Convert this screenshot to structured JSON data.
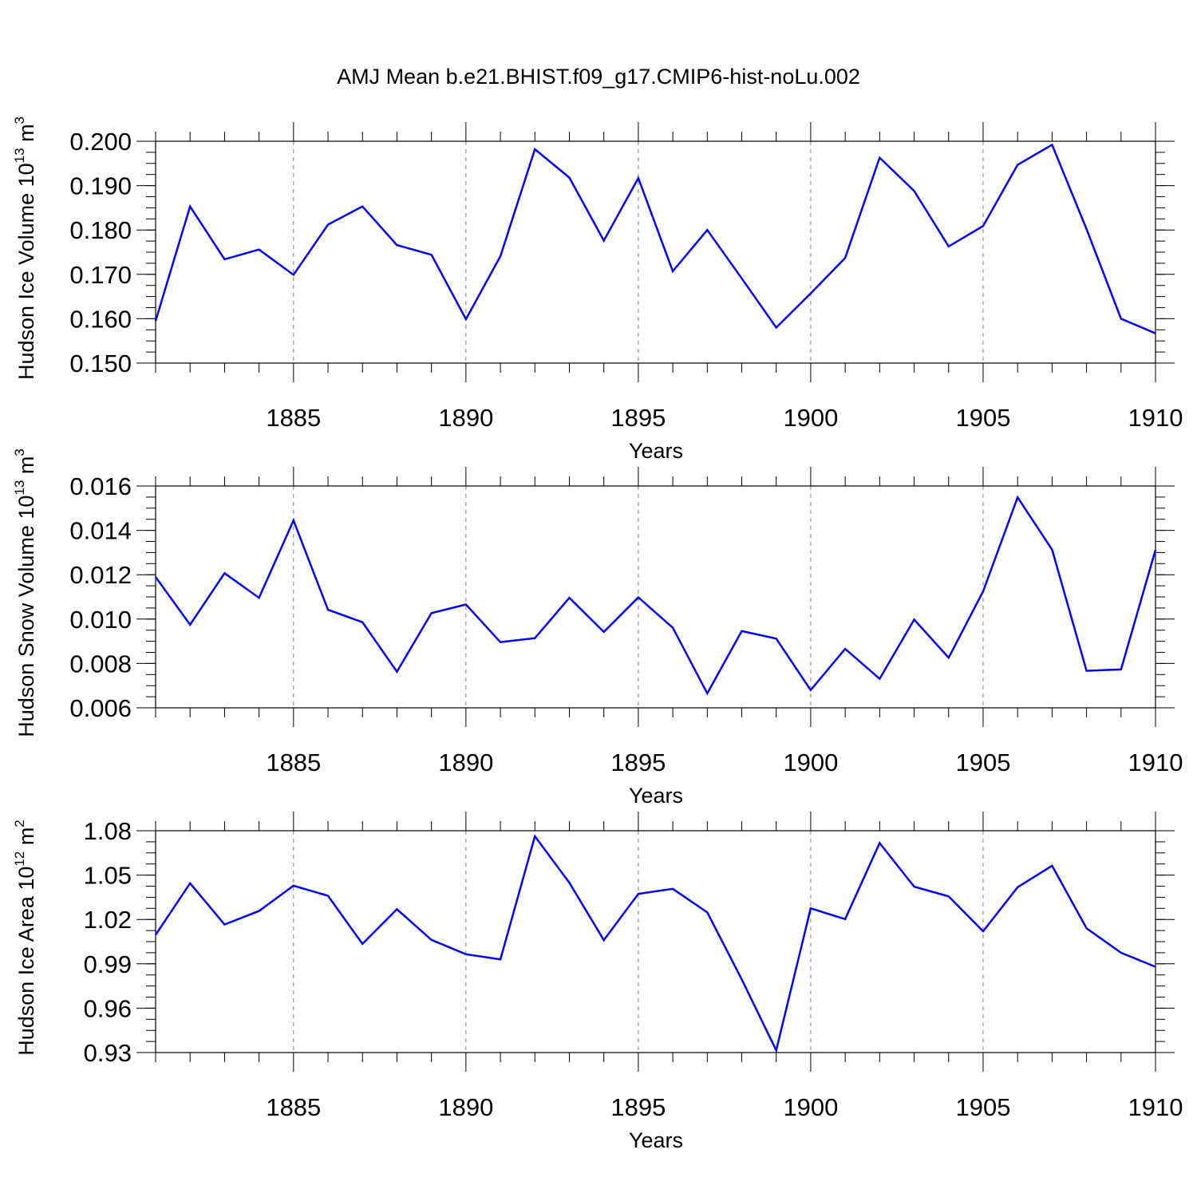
{
  "title": "AMJ Mean b.e21.BHIST.f09_g17.CMIP6-hist-noLu.002",
  "colors": {
    "line": "#0000ff",
    "axis": "#000000",
    "grid": "#808080"
  },
  "chart_data": [
    {
      "type": "line",
      "ylabel": "Hudson Ice Volume 10",
      "ylabel_exp": "13",
      "ylabel_unit": "m",
      "ylabel_unit_exp": "3",
      "xlabel": "Years",
      "xlim": [
        1881,
        1910
      ],
      "ylim": [
        0.15,
        0.2
      ],
      "xticks": [
        1885,
        1890,
        1895,
        1900,
        1905,
        1910
      ],
      "xtick_labels": [
        "1885",
        "1890",
        "1895",
        "1900",
        "1905",
        "1910"
      ],
      "yticks": [
        0.15,
        0.16,
        0.17,
        0.18,
        0.19,
        0.2
      ],
      "ytick_labels": [
        "0.150",
        "0.160",
        "0.170",
        "0.180",
        "0.190",
        "0.200"
      ],
      "yminor_step": 0.0025,
      "grid": "vertical-dashed",
      "x": [
        1881,
        1882,
        1883,
        1884,
        1885,
        1886,
        1887,
        1888,
        1889,
        1890,
        1891,
        1892,
        1893,
        1894,
        1895,
        1896,
        1897,
        1898,
        1899,
        1900,
        1901,
        1902,
        1903,
        1904,
        1905,
        1906,
        1907,
        1908,
        1909,
        1910
      ],
      "values": [
        0.1595,
        0.1853,
        0.1734,
        0.1756,
        0.1699,
        0.1812,
        0.1853,
        0.1766,
        0.1744,
        0.1599,
        0.1741,
        0.1982,
        0.1918,
        0.1776,
        0.1917,
        0.1707,
        0.18,
        0.1691,
        0.158,
        0.1657,
        0.1737,
        0.1963,
        0.1888,
        0.1763,
        0.1809,
        0.1947,
        0.1992,
        0.1802,
        0.16,
        0.1567
      ]
    },
    {
      "type": "line",
      "ylabel": "Hudson Snow Volume 10",
      "ylabel_exp": "13",
      "ylabel_unit": "m",
      "ylabel_unit_exp": "3",
      "xlabel": "Years",
      "xlim": [
        1881,
        1910
      ],
      "ylim": [
        0.006,
        0.016
      ],
      "xticks": [
        1885,
        1890,
        1895,
        1900,
        1905,
        1910
      ],
      "xtick_labels": [
        "1885",
        "1890",
        "1895",
        "1900",
        "1905",
        "1910"
      ],
      "yticks": [
        0.006,
        0.008,
        0.01,
        0.012,
        0.014,
        0.016
      ],
      "ytick_labels": [
        "0.006",
        "0.008",
        "0.010",
        "0.012",
        "0.014",
        "0.016"
      ],
      "yminor_step": 0.0005,
      "grid": "vertical-dashed",
      "x": [
        1881,
        1882,
        1883,
        1884,
        1885,
        1886,
        1887,
        1888,
        1889,
        1890,
        1891,
        1892,
        1893,
        1894,
        1895,
        1896,
        1897,
        1898,
        1899,
        1900,
        1901,
        1902,
        1903,
        1904,
        1905,
        1906,
        1907,
        1908,
        1909,
        1910
      ],
      "values": [
        0.0119,
        0.00975,
        0.01207,
        0.01096,
        0.01445,
        0.01042,
        0.00986,
        0.00763,
        0.01027,
        0.01066,
        0.00896,
        0.00914,
        0.01096,
        0.00942,
        0.01098,
        0.00961,
        0.00665,
        0.00946,
        0.00912,
        0.0068,
        0.00866,
        0.00731,
        0.00998,
        0.00826,
        0.01125,
        0.01549,
        0.01313,
        0.00767,
        0.00773,
        0.01312
      ]
    },
    {
      "type": "line",
      "ylabel": "Hudson Ice Area 10",
      "ylabel_exp": "12",
      "ylabel_unit": "m",
      "ylabel_unit_exp": "2",
      "xlabel": "Years",
      "xlim": [
        1881,
        1910
      ],
      "ylim": [
        0.93,
        1.08
      ],
      "xticks": [
        1885,
        1890,
        1895,
        1900,
        1905,
        1910
      ],
      "xtick_labels": [
        "1885",
        "1890",
        "1895",
        "1900",
        "1905",
        "1910"
      ],
      "yticks": [
        0.93,
        0.96,
        0.99,
        1.02,
        1.05,
        1.08
      ],
      "ytick_labels": [
        "0.93",
        "0.96",
        "0.99",
        "1.02",
        "1.05",
        "1.08"
      ],
      "yminor_step": 0.0075,
      "grid": "vertical-dashed",
      "x": [
        1881,
        1882,
        1883,
        1884,
        1885,
        1886,
        1887,
        1888,
        1889,
        1890,
        1891,
        1892,
        1893,
        1894,
        1895,
        1896,
        1897,
        1898,
        1899,
        1900,
        1901,
        1902,
        1903,
        1904,
        1905,
        1906,
        1907,
        1908,
        1909,
        1910
      ],
      "values": [
        1.0096,
        1.0445,
        1.0166,
        1.0257,
        1.0428,
        1.036,
        1.0035,
        1.0269,
        1.0062,
        0.9965,
        0.993,
        1.0763,
        1.0448,
        1.006,
        1.0373,
        1.0407,
        1.0248,
        0.9795,
        0.9315,
        1.0275,
        1.0202,
        1.0717,
        1.0422,
        1.0356,
        1.012,
        1.0418,
        1.0563,
        1.014,
        0.9975,
        0.988
      ]
    }
  ]
}
